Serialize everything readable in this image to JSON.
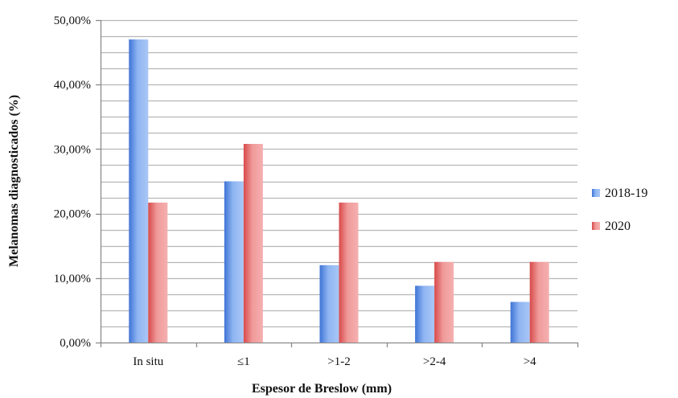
{
  "chart_data": {
    "type": "bar",
    "xlabel": "Espesor de Breslow (mm)",
    "ylabel": "Melanomas diagnosticados (%)",
    "categories": [
      "In situ",
      "≤1",
      ">1-2",
      ">2-4",
      ">4"
    ],
    "series": [
      {
        "name": "2018-19",
        "values": [
          47.0,
          25.0,
          12.0,
          8.8,
          6.3
        ],
        "color": "#5b8fe0"
      },
      {
        "name": "2020",
        "values": [
          21.7,
          30.8,
          21.7,
          12.5,
          12.5
        ],
        "color": "#e26464"
      }
    ],
    "ylim": [
      0,
      50
    ],
    "yticks": [
      0,
      10,
      20,
      30,
      40,
      50
    ],
    "ytick_labels": [
      "0,00%",
      "10,00%",
      "20,00%",
      "30,00%",
      "40,00%",
      "50,00%"
    ],
    "minor_grid_step": 2.5,
    "grid": true,
    "legend_position": "right"
  }
}
